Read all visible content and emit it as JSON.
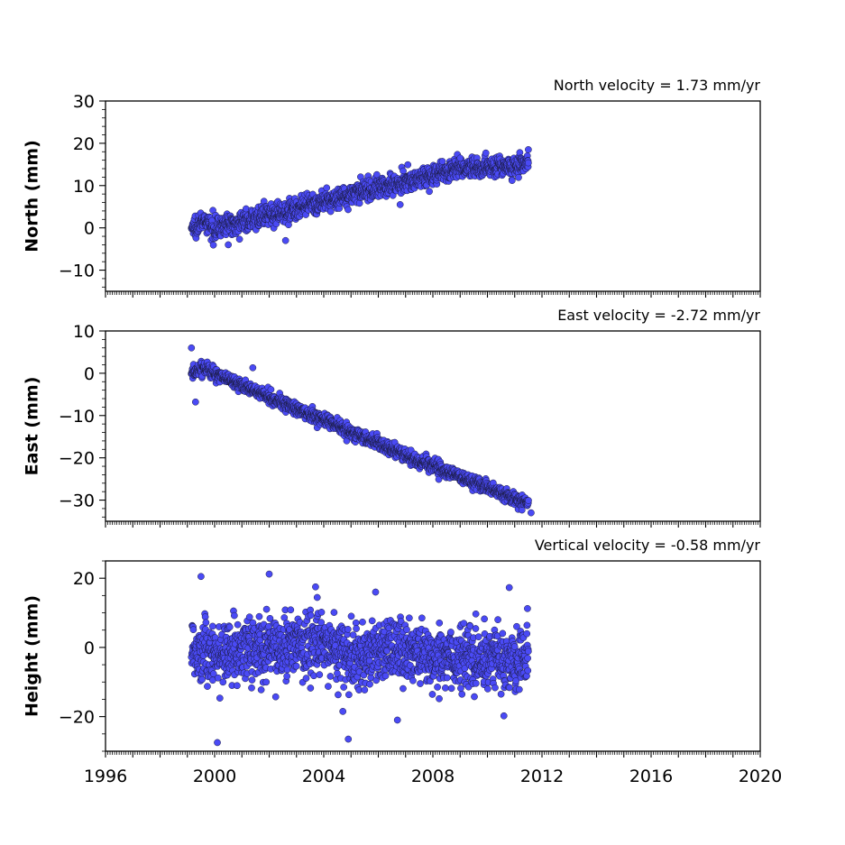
{
  "chart_data": [
    {
      "type": "scatter",
      "ylabel": "North (mm)",
      "annotation": "North velocity = 1.73 mm/yr",
      "xlim": [
        1996,
        2020
      ],
      "ylim": [
        -15,
        30
      ],
      "yticks": [
        -10,
        0,
        10,
        20,
        30
      ],
      "yminor_step": 2,
      "x_start": 1999.15,
      "x_end": 2011.5,
      "points": [
        [
          1999.2,
          0.0
        ],
        [
          1999.5,
          1.5
        ],
        [
          2000.0,
          0.0
        ],
        [
          2001.0,
          1.5
        ],
        [
          2002.0,
          3.0
        ],
        [
          2003.0,
          4.5
        ],
        [
          2004.0,
          6.0
        ],
        [
          2005.0,
          8.0
        ],
        [
          2006.0,
          9.5
        ],
        [
          2007.0,
          11.0
        ],
        [
          2008.0,
          12.5
        ],
        [
          2009.0,
          14.0
        ],
        [
          2010.0,
          14.5
        ],
        [
          2011.0,
          14.5
        ],
        [
          2011.5,
          15.5
        ]
      ],
      "spread": 2.0,
      "outliers": [
        [
          2002.6,
          -3.0
        ],
        [
          2000.5,
          -4.0
        ],
        [
          2011.5,
          18.5
        ],
        [
          2009.0,
          16.5
        ],
        [
          2006.8,
          5.5
        ]
      ],
      "color": "#4a4af5",
      "xaxis_labels": false
    },
    {
      "type": "scatter",
      "ylabel": "East (mm)",
      "annotation": "East velocity = -2.72 mm/yr",
      "xlim": [
        1996,
        2020
      ],
      "ylim": [
        -35,
        10
      ],
      "yticks": [
        -30,
        -20,
        -10,
        0,
        10
      ],
      "yminor_step": 2,
      "x_start": 1999.15,
      "x_end": 2011.5,
      "points": [
        [
          1999.2,
          0.0
        ],
        [
          1999.6,
          1.5
        ],
        [
          2000.0,
          0.0
        ],
        [
          2001.0,
          -3.0
        ],
        [
          2002.0,
          -5.5
        ],
        [
          2003.0,
          -8.5
        ],
        [
          2004.0,
          -11.0
        ],
        [
          2005.0,
          -14.0
        ],
        [
          2006.0,
          -16.5
        ],
        [
          2007.0,
          -19.5
        ],
        [
          2008.0,
          -22.0
        ],
        [
          2009.0,
          -24.5
        ],
        [
          2010.0,
          -27.0
        ],
        [
          2011.0,
          -29.5
        ],
        [
          2011.5,
          -31.0
        ]
      ],
      "spread": 1.3,
      "outliers": [
        [
          1999.15,
          6.0
        ],
        [
          1999.3,
          -6.8
        ],
        [
          2001.4,
          1.3
        ],
        [
          2011.6,
          -33.0
        ]
      ],
      "color": "#4a4af5",
      "xaxis_labels": false
    },
    {
      "type": "scatter",
      "ylabel": "Height (mm)",
      "annotation": "Vertical velocity = -0.58 mm/yr",
      "xlim": [
        1996,
        2020
      ],
      "ylim": [
        -30,
        25
      ],
      "yticks": [
        -20,
        0,
        20
      ],
      "yminor_step": 5,
      "x_start": 1999.15,
      "x_end": 2011.5,
      "points": [
        [
          1999.2,
          0.0
        ],
        [
          2000.0,
          -2.0
        ],
        [
          2001.0,
          -1.0
        ],
        [
          2002.0,
          0.5
        ],
        [
          2003.0,
          1.0
        ],
        [
          2004.0,
          1.0
        ],
        [
          2005.0,
          -2.5
        ],
        [
          2006.0,
          -1.5
        ],
        [
          2007.0,
          -1.5
        ],
        [
          2008.0,
          -2.0
        ],
        [
          2009.0,
          -2.5
        ],
        [
          2010.0,
          -3.0
        ],
        [
          2011.0,
          -4.0
        ],
        [
          2011.5,
          -3.0
        ]
      ],
      "spread": 7.5,
      "outliers": [
        [
          1999.5,
          20.5
        ],
        [
          2002.0,
          21.2
        ],
        [
          2000.1,
          -27.5
        ],
        [
          2004.9,
          -26.5
        ],
        [
          2004.7,
          -18.5
        ],
        [
          2006.7,
          -21.0
        ],
        [
          2010.8,
          17.3
        ],
        [
          2003.7,
          17.5
        ],
        [
          2005.9,
          16.0
        ]
      ],
      "color": "#4a4af5",
      "xaxis_labels": true,
      "xticks": [
        1996,
        2000,
        2004,
        2008,
        2012,
        2016,
        2020
      ]
    }
  ]
}
